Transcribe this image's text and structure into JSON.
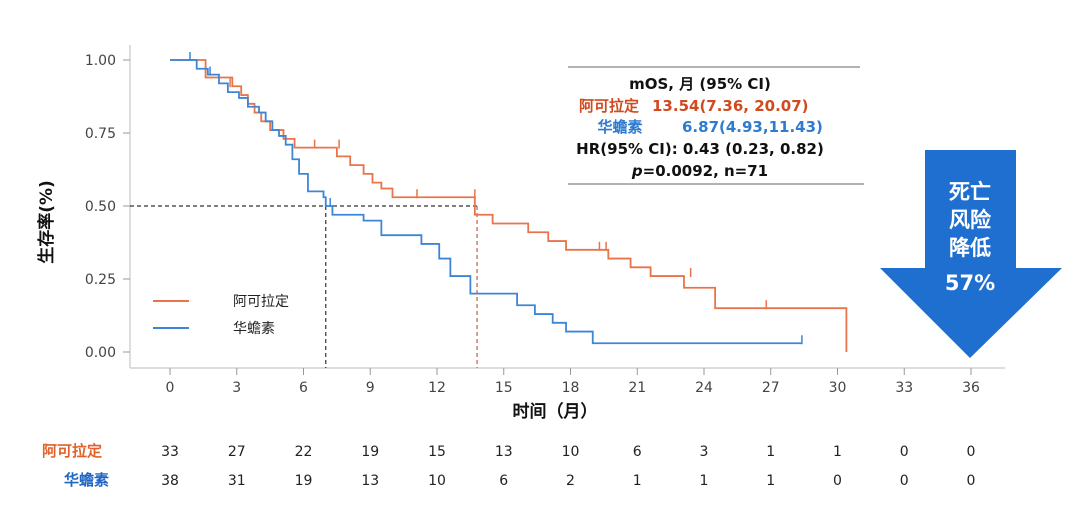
{
  "chart_data": {
    "type": "line",
    "subtype": "kaplan-meier",
    "xlabel": "时间（月）",
    "ylabel": "生存率(%)",
    "xlim": [
      -3,
      37.5
    ],
    "ylim": [
      0,
      1.05
    ],
    "xticks": [
      "0",
      "3",
      "6",
      "9",
      "12",
      "15",
      "18",
      "21",
      "24",
      "27",
      "30",
      "33",
      "36"
    ],
    "xtick_values": [
      0,
      3,
      6,
      9,
      12,
      15,
      18,
      21,
      24,
      27,
      30,
      33,
      36
    ],
    "yticks": [
      "0.00",
      "0.25",
      "0.50",
      "0.75",
      "1.00"
    ],
    "ytick_values": [
      0,
      0.25,
      0.5,
      0.75,
      1.0
    ],
    "legend": {
      "position": "bottom-left"
    },
    "series": [
      {
        "name": "阿可拉定",
        "color": "#E8744A",
        "x": [
          0,
          0.9,
          1.6,
          2.8,
          3.2,
          3.5,
          3.8,
          4.1,
          4.5,
          5.1,
          5.6,
          6.6,
          7.5,
          8.1,
          8.7,
          9.1,
          9.5,
          10.0,
          10.5,
          13.7,
          14.5,
          16.1,
          17.0,
          17.8,
          18.6,
          19.7,
          20.7,
          21.6,
          23.1,
          24.5,
          27.0,
          30.4
        ],
        "y": [
          1.0,
          1.0,
          0.94,
          0.91,
          0.88,
          0.85,
          0.82,
          0.79,
          0.76,
          0.73,
          0.7,
          0.7,
          0.67,
          0.64,
          0.61,
          0.58,
          0.56,
          0.53,
          0.53,
          0.47,
          0.44,
          0.41,
          0.38,
          0.35,
          0.35,
          0.32,
          0.29,
          0.26,
          0.22,
          0.15,
          0.15,
          0.0
        ],
        "censored_x": [
          2.7,
          6.5,
          7.6,
          11.1,
          13.7,
          19.3,
          19.6,
          23.4,
          26.8
        ],
        "censored_y": [
          0.91,
          0.7,
          0.7,
          0.53,
          0.53,
          0.35,
          0.35,
          0.26,
          0.15
        ]
      },
      {
        "name": "华蟾素",
        "color": "#3D85D6",
        "x": [
          0,
          0.6,
          1.2,
          1.7,
          2.2,
          2.6,
          3.1,
          3.5,
          4.0,
          4.3,
          4.6,
          4.9,
          5.2,
          5.5,
          5.8,
          6.2,
          6.9,
          7.0,
          7.3,
          8.7,
          9.5,
          11.3,
          12.1,
          12.6,
          13.5,
          14.9,
          15.6,
          16.4,
          17.2,
          17.8,
          19.0,
          28.4
        ],
        "y": [
          1.0,
          1.0,
          0.97,
          0.95,
          0.92,
          0.89,
          0.87,
          0.84,
          0.82,
          0.79,
          0.76,
          0.74,
          0.71,
          0.66,
          0.61,
          0.55,
          0.53,
          0.5,
          0.47,
          0.45,
          0.4,
          0.37,
          0.32,
          0.26,
          0.2,
          0.2,
          0.16,
          0.13,
          0.1,
          0.07,
          0.03,
          0.03
        ],
        "censored_x": [
          0.9,
          1.8,
          4.6,
          7.2,
          28.4
        ],
        "censored_y": [
          1.0,
          0.95,
          0.76,
          0.5,
          0.03
        ]
      }
    ],
    "median_markers": [
      {
        "x": 7.0,
        "y": 0.5,
        "color": "#333333"
      },
      {
        "x": 13.8,
        "y": 0.5,
        "color": "#C0643C"
      }
    ]
  },
  "stats_box": {
    "header": "mOS, 月 (95% CI)",
    "rows": [
      {
        "label": "阿可拉定",
        "value": "13.54(7.36, 20.07)",
        "color": "#D04A20"
      },
      {
        "label": "华蟾素",
        "value": "6.87(4.93,11.43)",
        "color": "#2E7BCF"
      }
    ],
    "hr": "HR(95% CI): 0.43 (0.23, 0.82)",
    "p_symbol": "p",
    "p_rest": "=0.0092, n=71"
  },
  "arrow": {
    "lines": [
      "死亡",
      "风险",
      "降低",
      "57%"
    ],
    "color": "#1E6FD0"
  },
  "risk_table": {
    "rows": [
      {
        "label": "阿可拉定",
        "color": "#E2622A",
        "values": [
          "33",
          "27",
          "22",
          "19",
          "15",
          "13",
          "10",
          "6",
          "3",
          "1",
          "1",
          "0",
          "0"
        ]
      },
      {
        "label": "华蟾素",
        "color": "#2268C2",
        "values": [
          "38",
          "31",
          "19",
          "13",
          "10",
          "6",
          "2",
          "1",
          "1",
          "1",
          "0",
          "0",
          "0"
        ]
      }
    ]
  }
}
